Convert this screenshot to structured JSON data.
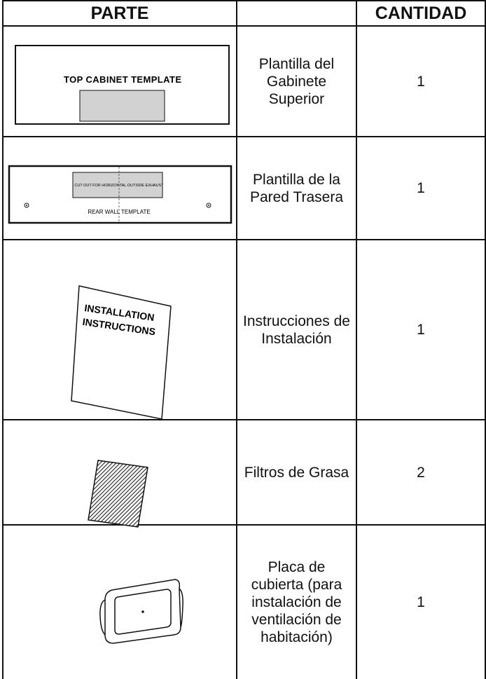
{
  "header": {
    "part": "PARTE",
    "quantity": "CANTIDAD"
  },
  "rows": [
    {
      "illustration_text": "TOP CABINET TEMPLATE",
      "name": "Plantilla del Gabinete Superior",
      "quantity": 1
    },
    {
      "illustration_text": "REAR WALL TEMPLATE",
      "illustration_subtext": "CUT OUT FOR HORIZONTAL OUTSIDE EXHAUST",
      "name": "Plantilla de la Pared Trasera",
      "quantity": 1
    },
    {
      "illustration_text": "INSTALLATION INSTRUCTIONS",
      "name": "Instrucciones de Instalación",
      "quantity": 1
    },
    {
      "name": "Filtros de Grasa",
      "quantity": 2
    },
    {
      "name": "Placa de cubierta (para instalación de ventilación de habitación)",
      "quantity": 1
    }
  ]
}
